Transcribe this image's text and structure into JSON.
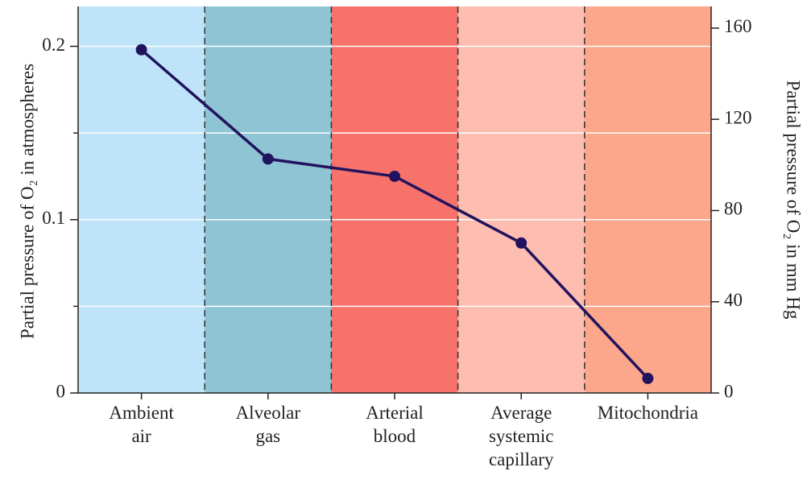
{
  "chart_data": {
    "type": "line",
    "y_label": "Partial pressure of O₂ in atmospheres",
    "y2_label": "Partial pressure of O₂ in mm Hg",
    "categories": [
      [
        "Ambient",
        "air"
      ],
      [
        "Alveolar",
        "gas"
      ],
      [
        "Arterial",
        "blood"
      ],
      [
        "Average",
        "systemic",
        "capillary"
      ],
      [
        "Mitochondria"
      ]
    ],
    "band_colors": [
      "#bfe4f9",
      "#8fc4d4",
      "#f6726b",
      "#fdbdb1",
      "#fca68b"
    ],
    "series": [
      {
        "name": "Partial pressure of O₂",
        "color": "#22135e",
        "values": [
          0.198,
          0.135,
          0.125,
          0.0865,
          0.0084
        ]
      }
    ],
    "ylim": [
      0,
      0.223
    ],
    "yticks": [
      0,
      0.1,
      0.2
    ],
    "minor_yticks": [
      0.05,
      0.15
    ],
    "y2lim": [
      0,
      169.5
    ],
    "y2ticks": [
      0,
      40,
      80,
      120,
      160
    ],
    "grid": true
  }
}
